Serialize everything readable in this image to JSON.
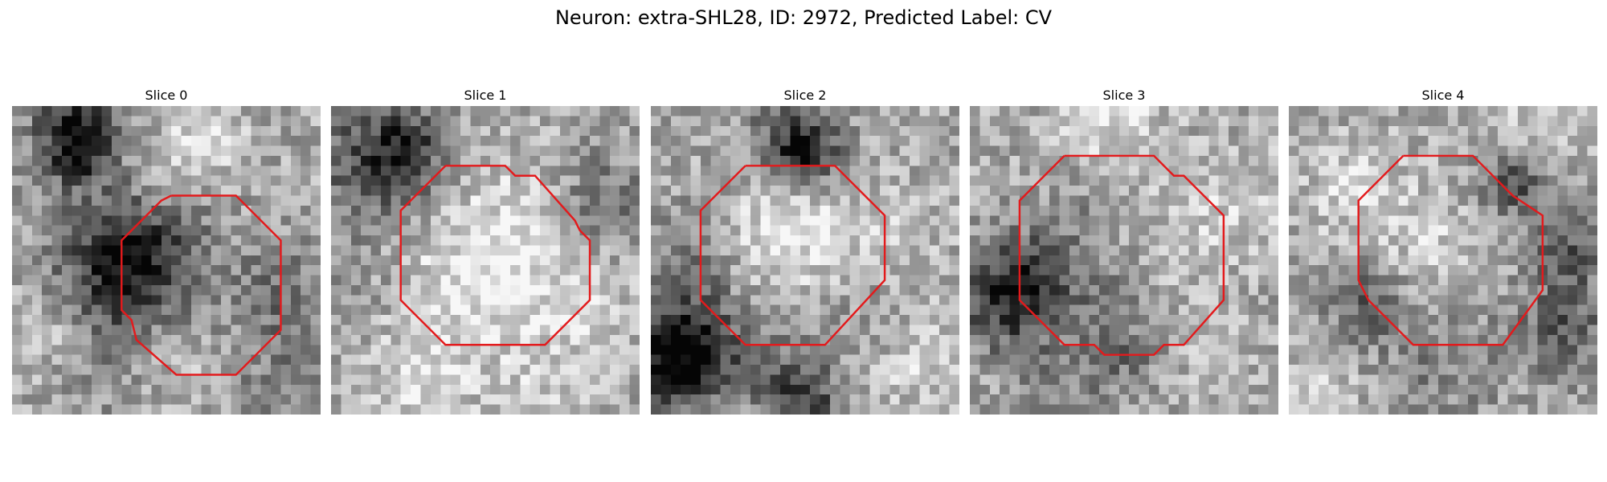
{
  "figure": {
    "title": "Neuron: extra-SHL28, ID: 2972, Predicted Label: CV"
  },
  "contour_color": "#e31a1c",
  "panels": [
    {
      "label": "Slice 0",
      "seed": 11,
      "blobs": [
        [
          6,
          2,
          3.0,
          -0.55
        ],
        [
          6,
          5,
          1.8,
          -0.25
        ],
        [
          19,
          3,
          2.5,
          0.25
        ],
        [
          14,
          8,
          4.0,
          0.12
        ],
        [
          12,
          14,
          5.2,
          -0.45
        ],
        [
          10,
          17,
          4.0,
          -0.25
        ],
        [
          27,
          19,
          3.5,
          -0.25
        ],
        [
          4,
          22,
          3.0,
          0.15
        ],
        [
          16,
          25,
          3.0,
          0.1
        ],
        [
          8,
          26,
          3.0,
          -0.12
        ],
        [
          26,
          28,
          3.0,
          -0.15
        ]
      ]
    },
    {
      "label": "Slice 1",
      "seed": 23,
      "blobs": [
        [
          4,
          5,
          5.0,
          -0.35
        ],
        [
          7,
          4,
          2.5,
          -0.3
        ],
        [
          26,
          9,
          3.5,
          -0.3
        ],
        [
          15,
          16,
          7.0,
          0.25
        ],
        [
          2,
          18,
          4.0,
          -0.1
        ],
        [
          22,
          10,
          4.0,
          0.12
        ],
        [
          26,
          20,
          3.0,
          0.1
        ],
        [
          8,
          27,
          4.0,
          0.15
        ],
        [
          22,
          28,
          3.5,
          0.1
        ]
      ]
    },
    {
      "label": "Slice 2",
      "seed": 37,
      "blobs": [
        [
          14,
          3,
          3.5,
          -0.3
        ],
        [
          15,
          4,
          2.0,
          -0.35
        ],
        [
          4,
          13,
          3.0,
          -0.15
        ],
        [
          13,
          12,
          4.0,
          0.28
        ],
        [
          24,
          13,
          3.5,
          0.12
        ],
        [
          3,
          23,
          4.0,
          -0.5
        ],
        [
          2,
          26,
          3.0,
          -0.35
        ],
        [
          12,
          26,
          3.0,
          -0.15
        ],
        [
          15,
          29,
          2.5,
          -0.4
        ],
        [
          26,
          25,
          3.5,
          0.15
        ],
        [
          22,
          21,
          3.0,
          -0.1
        ]
      ]
    },
    {
      "label": "Slice 3",
      "seed": 41,
      "blobs": [
        [
          3,
          19,
          3.5,
          -0.45
        ],
        [
          6,
          16,
          3.0,
          -0.25
        ],
        [
          13,
          19,
          4.0,
          -0.15
        ],
        [
          20,
          14,
          4.0,
          0.1
        ],
        [
          10,
          9,
          3.0,
          -0.1
        ],
        [
          15,
          25,
          3.0,
          -0.15
        ],
        [
          8,
          27,
          3.0,
          -0.15
        ],
        [
          27,
          9,
          3.5,
          0.15
        ],
        [
          14,
          1,
          4.0,
          0.2
        ],
        [
          24,
          26,
          3.0,
          0.1
        ]
      ]
    },
    {
      "label": "Slice 4",
      "seed": 53,
      "blobs": [
        [
          22,
          7,
          2.5,
          -0.4
        ],
        [
          28,
          14,
          3.0,
          -0.3
        ],
        [
          27,
          22,
          3.0,
          -0.3
        ],
        [
          7,
          19,
          3.0,
          -0.25
        ],
        [
          14,
          14,
          4.0,
          0.15
        ],
        [
          6,
          8,
          4.0,
          0.15
        ],
        [
          15,
          25,
          5.0,
          -0.15
        ],
        [
          3,
          28,
          3.0,
          0.15
        ],
        [
          24,
          2,
          4.0,
          0.15
        ]
      ]
    }
  ]
}
